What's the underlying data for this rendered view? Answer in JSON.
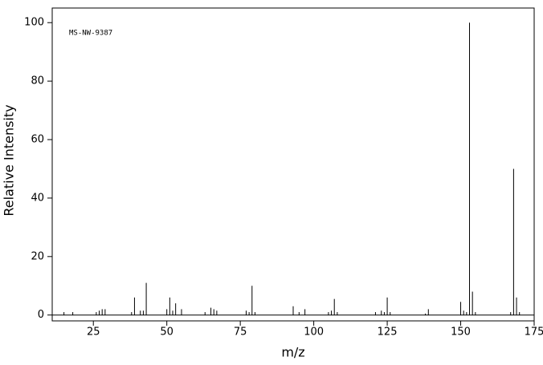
{
  "chart_data": {
    "type": "stem",
    "annotation": "MS-NW-9387",
    "x_label": "m/z",
    "y_label": "Relative Intensity",
    "xlim": [
      11,
      175
    ],
    "ylim": [
      -2,
      105
    ],
    "xticks": [
      25,
      50,
      75,
      100,
      125,
      150,
      175
    ],
    "yticks": [
      0,
      20,
      40,
      60,
      80,
      100
    ],
    "color": "#000000",
    "x": [
      15,
      18,
      26,
      27,
      28,
      29,
      38,
      39,
      41,
      42,
      43,
      50,
      51,
      52,
      53,
      55,
      63,
      65,
      66,
      67,
      77,
      78,
      79,
      80,
      93,
      95,
      97,
      105,
      106,
      107,
      108,
      121,
      123,
      124,
      125,
      126,
      138,
      139,
      150,
      151,
      152,
      153,
      154,
      155,
      167,
      168,
      169,
      170
    ],
    "values": [
      1,
      1,
      1,
      1.5,
      2,
      2,
      1,
      6,
      1.5,
      1.5,
      11,
      2,
      6,
      1.5,
      4,
      2,
      1,
      2.5,
      2,
      1.5,
      1.5,
      1,
      10,
      1,
      3,
      1,
      2,
      1,
      1.5,
      5.5,
      1,
      1,
      1.5,
      1,
      6,
      1,
      0.5,
      2,
      4.5,
      1.5,
      1,
      100,
      8,
      1,
      1,
      50,
      6,
      1
    ]
  }
}
